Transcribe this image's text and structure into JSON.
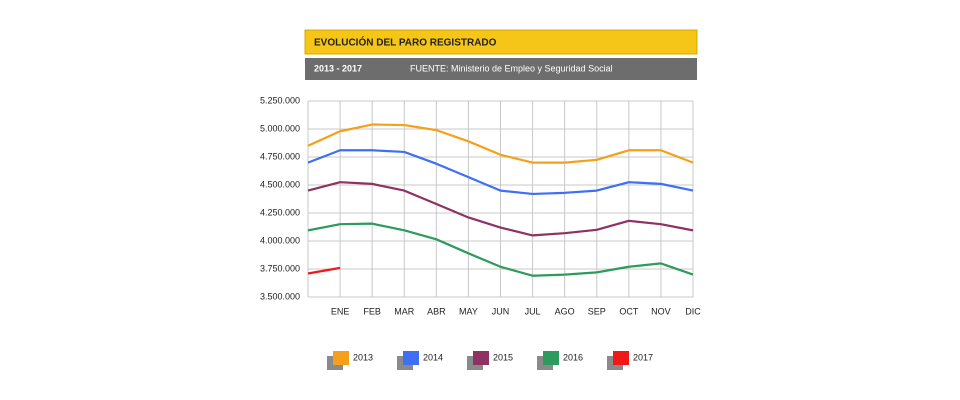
{
  "chart_data": {
    "type": "line",
    "title": "EVOLUCIÓN DEL PARO REGISTRADO",
    "subtitle": "2013 - 2017",
    "source": "FUENTE: Ministerio de Empleo y Seguridad Social",
    "categories": [
      null,
      "ENE",
      "FEB",
      "MAR",
      "ABR",
      "MAY",
      "JUN",
      "JUL",
      "AGO",
      "SEP",
      "OCT",
      "NOV",
      "DIC"
    ],
    "series": [
      {
        "name": "2013",
        "color": "#f5a01a",
        "values": [
          4850000,
          4980000,
          5040000,
          5035000,
          4990000,
          4890000,
          4770000,
          4700000,
          4700000,
          4725000,
          4810000,
          4810000,
          4700000
        ]
      },
      {
        "name": "2014",
        "color": "#3f6ff5",
        "values": [
          4700000,
          4810000,
          4810000,
          4795000,
          4690000,
          4570000,
          4450000,
          4420000,
          4430000,
          4450000,
          4525000,
          4510000,
          4450000
        ]
      },
      {
        "name": "2015",
        "color": "#8e3163",
        "values": [
          4450000,
          4525000,
          4510000,
          4450000,
          4330000,
          4210000,
          4120000,
          4050000,
          4070000,
          4100000,
          4180000,
          4150000,
          4095000
        ]
      },
      {
        "name": "2016",
        "color": "#2e9a5c",
        "values": [
          4095000,
          4150000,
          4155000,
          4095000,
          4015000,
          3890000,
          3770000,
          3690000,
          3700000,
          3720000,
          3770000,
          3800000,
          3700000
        ]
      },
      {
        "name": "2017",
        "color": "#f01818",
        "values": [
          3710000,
          3760000,
          null,
          null,
          null,
          null,
          null,
          null,
          null,
          null,
          null,
          null,
          null
        ]
      }
    ],
    "ylim": [
      3500000,
      5250000
    ],
    "yticks": [
      {
        "value": 3500000,
        "label": "3.500.000"
      },
      {
        "value": 3750000,
        "label": "3.750.000"
      },
      {
        "value": 4000000,
        "label": "4.000.000"
      },
      {
        "value": 4250000,
        "label": "4.250.000"
      },
      {
        "value": 4500000,
        "label": "4.500.000"
      },
      {
        "value": 4750000,
        "label": "4.750.000"
      },
      {
        "value": 5000000,
        "label": "5.000.000"
      },
      {
        "value": 5250000,
        "label": "5.250.000"
      }
    ],
    "grid": true
  }
}
